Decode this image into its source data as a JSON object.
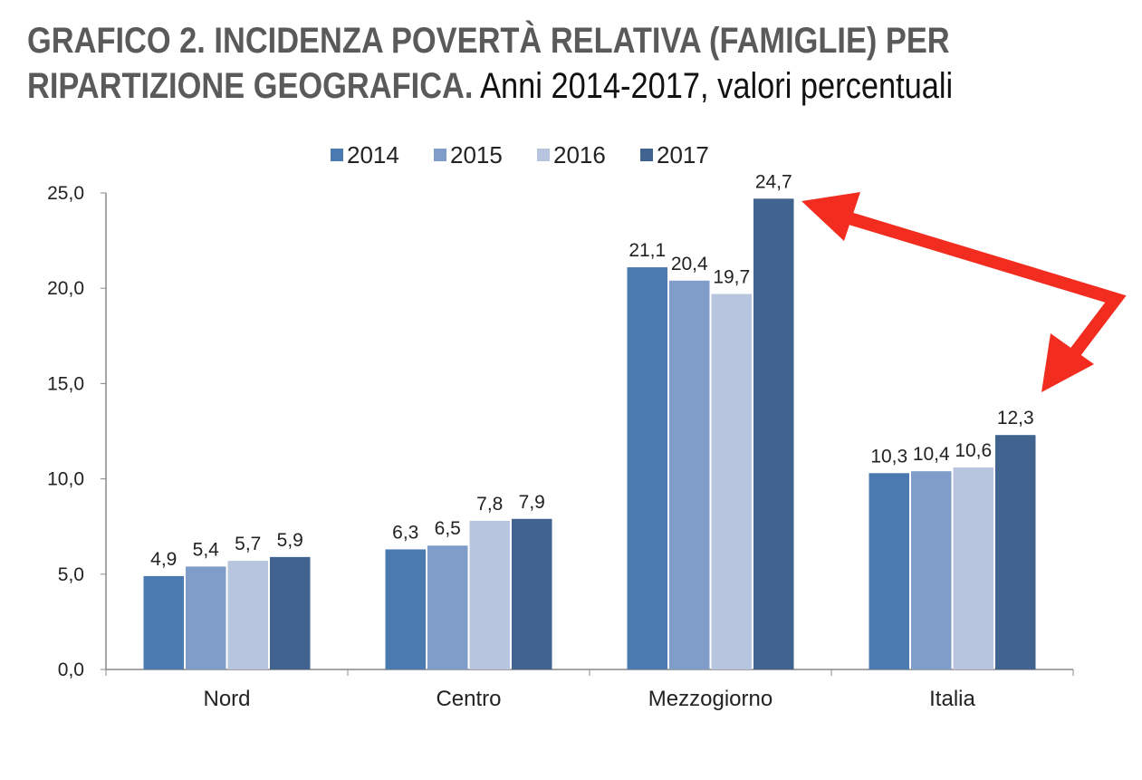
{
  "title": {
    "line1": "GRAFICO 2. INCIDENZA POVERTÀ RELATIVA (FAMIGLIE) PER",
    "line2_bold": "RIPARTIZIONE GEOGRAFICA.",
    "line2_rest": "Anni 2014-2017, valori percentuali"
  },
  "chart_data": {
    "type": "bar",
    "title": "GRAFICO 2. INCIDENZA POVERTÀ RELATIVA (FAMIGLIE) PER RIPARTIZIONE GEOGRAFICA. Anni 2014-2017, valori percentuali",
    "categories": [
      "Nord",
      "Centro",
      "Mezzogiorno",
      "Italia"
    ],
    "series": [
      {
        "name": "2014",
        "values": [
          4.9,
          6.3,
          21.1,
          10.3
        ],
        "color": "#4a7ab0"
      },
      {
        "name": "2015",
        "values": [
          5.4,
          6.5,
          20.4,
          10.4
        ],
        "color": "#7f9dc8"
      },
      {
        "name": "2016",
        "values": [
          5.7,
          7.8,
          19.7,
          10.6
        ],
        "color": "#b8c5de"
      },
      {
        "name": "2017",
        "values": [
          5.9,
          7.9,
          24.7,
          12.3
        ],
        "color": "#40638f"
      }
    ],
    "data_labels": [
      [
        "4,9",
        "6,3",
        "21,1",
        "10,3"
      ],
      [
        "5,4",
        "6,5",
        "20,4",
        "10,4"
      ],
      [
        "5,7",
        "7,8",
        "19,7",
        "10,6"
      ],
      [
        "5,9",
        "7,9",
        "24,7",
        "12,3"
      ]
    ],
    "yticks": [
      "0,0",
      "5,0",
      "10,0",
      "15,0",
      "20,0",
      "25,0"
    ],
    "ylim": [
      0,
      25
    ],
    "xlabel": "",
    "ylabel": "",
    "grid": false,
    "legend": "top",
    "annotation": {
      "type": "double-arrow",
      "from": "Mezzogiorno 2017",
      "to": "Italia 2017",
      "color": "#f22c1f"
    }
  }
}
